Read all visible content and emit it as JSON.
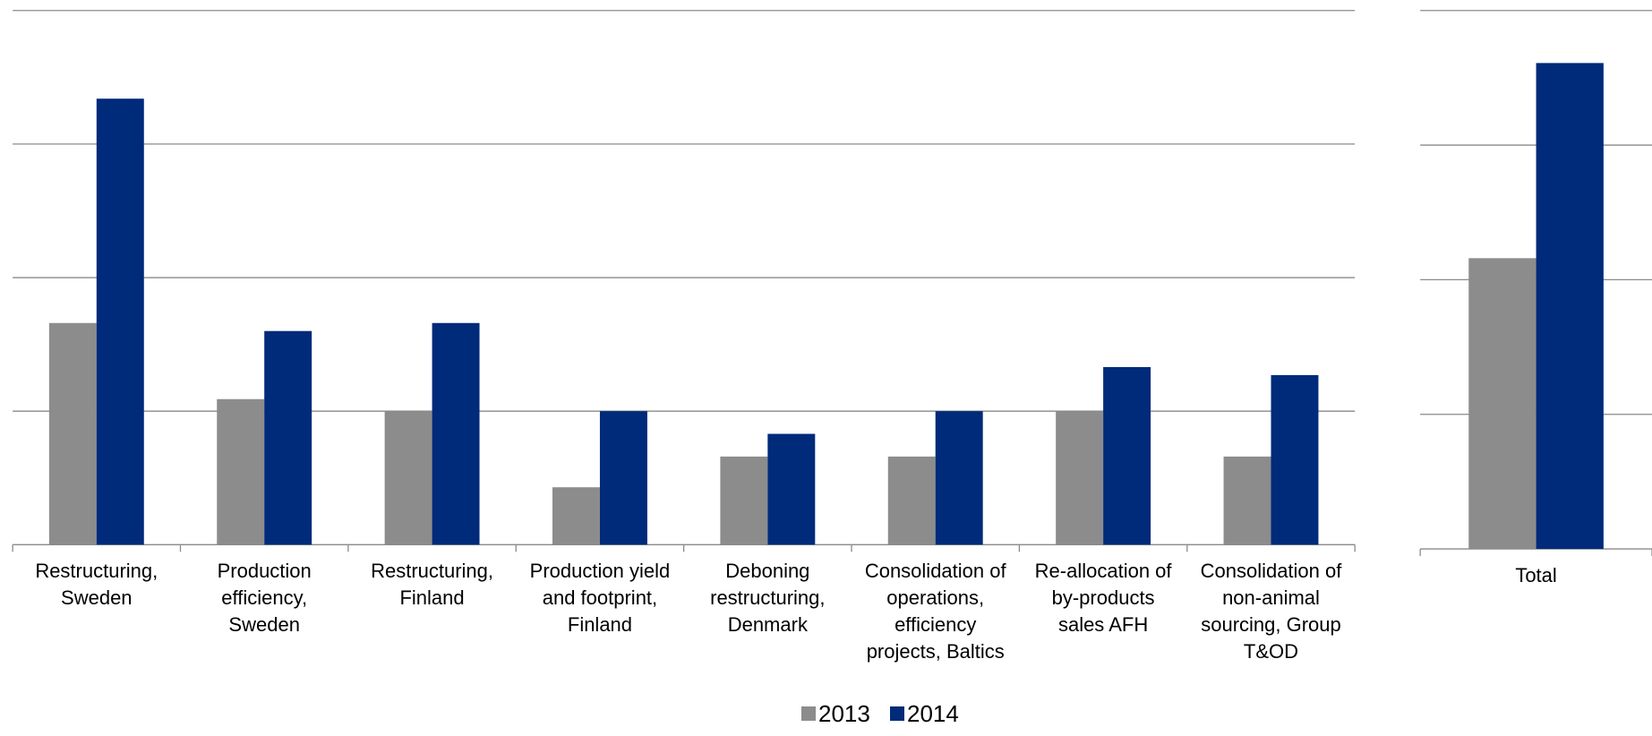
{
  "chart_data": [
    {
      "type": "bar",
      "categories": [
        "Restructuring, Sweden",
        "Production efficiency, Sweden",
        "Restructuring, Finland",
        "Production yield and footprint, Finland",
        "Deboning restructuring, Denmark",
        "Consolidation of operations, efficiency projects, Baltics",
        "Re-allocation of by-products sales AFH",
        "Consolidation of non-animal sourcing, Group T&OD"
      ],
      "series": [
        {
          "name": "2013",
          "color": "#8c8c8c",
          "values": [
            1.66,
            1.09,
            1.0,
            0.43,
            0.66,
            0.66,
            1.0,
            0.66
          ]
        },
        {
          "name": "2014",
          "color": "#002a7a",
          "values": [
            3.34,
            1.6,
            1.66,
            1.0,
            0.83,
            1.0,
            1.33,
            1.27
          ]
        }
      ],
      "ylim": [
        0,
        4
      ],
      "yticks": [
        0,
        1,
        2,
        3,
        4
      ],
      "grid": true
    },
    {
      "type": "bar",
      "categories": [
        "Total"
      ],
      "series": [
        {
          "color": "#8c8c8c",
          "values": [
            2.16
          ]
        },
        {
          "color": "#002a7a",
          "values": [
            3.61
          ]
        }
      ],
      "ylim": [
        0,
        4
      ],
      "yticks": [
        0,
        1,
        2,
        3,
        4
      ],
      "grid": true
    }
  ]
}
